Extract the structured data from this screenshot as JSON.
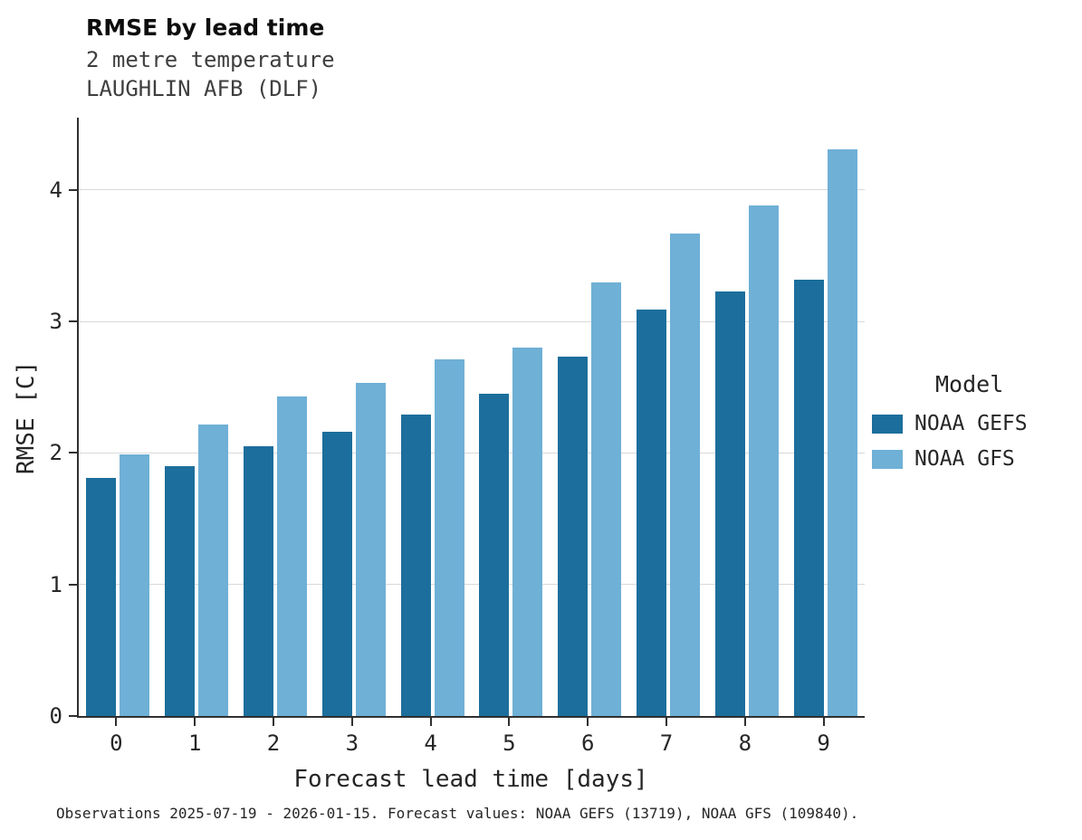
{
  "title": "RMSE by lead time",
  "subtitle_lines": [
    "2 metre temperature",
    "LAUGHLIN AFB (DLF)"
  ],
  "caption": "Observations 2025-07-19 - 2026-01-15. Forecast values: NOAA GEFS (13719), NOAA GFS (109840).",
  "legend": {
    "title": "Model",
    "entries": [
      {
        "label": "NOAA GEFS",
        "color": "#1c6e9c"
      },
      {
        "label": "NOAA GFS",
        "color": "#6fb0d6"
      }
    ]
  },
  "colors": {
    "noaa_gefs": "#1c6e9c",
    "noaa_gfs": "#6fb0d6",
    "gridline": "#d9d9d9",
    "spine": "#303030"
  },
  "chart_data": {
    "type": "bar",
    "title": "RMSE by lead time",
    "subtitle": "2 metre temperature — LAUGHLIN AFB (DLF)",
    "xlabel": "Forecast lead time [days]",
    "ylabel": "RMSE [C]",
    "categories": [
      "0",
      "1",
      "2",
      "3",
      "4",
      "5",
      "6",
      "7",
      "8",
      "9"
    ],
    "series": [
      {
        "name": "NOAA GEFS",
        "color": "#1c6e9c",
        "values": [
          1.81,
          1.9,
          2.05,
          2.16,
          2.29,
          2.45,
          2.73,
          3.09,
          3.23,
          3.32
        ]
      },
      {
        "name": "NOAA GFS",
        "color": "#6fb0d6",
        "values": [
          1.99,
          2.22,
          2.43,
          2.53,
          2.71,
          2.8,
          3.3,
          3.67,
          3.88,
          4.31
        ]
      }
    ],
    "ylim": [
      0,
      4.55
    ],
    "yticks": [
      0,
      1,
      2,
      3,
      4
    ],
    "grid": true,
    "legend_position": "right"
  }
}
